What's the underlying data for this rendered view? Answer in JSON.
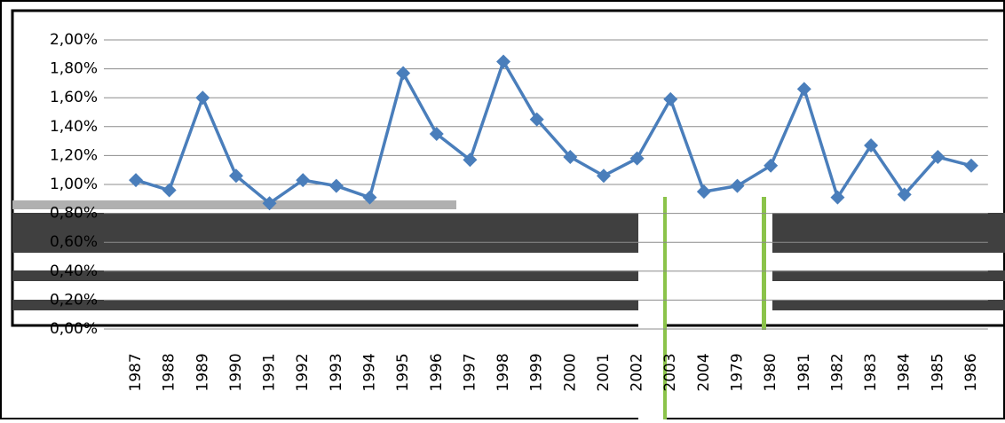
{
  "chart_data": {
    "type": "line",
    "categories": [
      "1987",
      "1988",
      "1989",
      "1990",
      "1991",
      "1992",
      "1993",
      "1994",
      "1995",
      "1996",
      "1997",
      "1998",
      "1999",
      "2000",
      "2001",
      "2002",
      "2003",
      "2004",
      "1979",
      "1980",
      "1981",
      "1982",
      "1983",
      "1984",
      "1985",
      "1986"
    ],
    "series": [
      {
        "color": "#4a7ebb",
        "values": [
          1.03,
          0.96,
          1.6,
          1.06,
          0.87,
          1.03,
          0.99,
          0.91,
          1.77,
          1.35,
          1.17,
          1.85,
          1.45,
          1.19,
          1.06,
          1.18,
          1.59,
          0.95,
          0.99,
          1.13,
          1.66,
          0.91,
          1.27,
          0.93,
          1.19,
          1.13
        ]
      }
    ],
    "ylim": [
      0,
      2
    ],
    "yticks": [
      {
        "value": 0,
        "label": "0,00%"
      },
      {
        "value": 0.2,
        "label": "0,20%"
      },
      {
        "value": 0.4,
        "label": "0,40%"
      },
      {
        "value": 0.6,
        "label": "0,60%"
      },
      {
        "value": 0.8,
        "label": "0,80%"
      },
      {
        "value": 1,
        "label": "1,00%"
      },
      {
        "value": 1.2,
        "label": "1,20%"
      },
      {
        "value": 1.4,
        "label": "1,40%"
      },
      {
        "value": 1.6,
        "label": "1,60%"
      },
      {
        "value": 1.8,
        "label": "1,80%"
      },
      {
        "value": 2,
        "label": "2,00%"
      }
    ],
    "grid": true
  }
}
